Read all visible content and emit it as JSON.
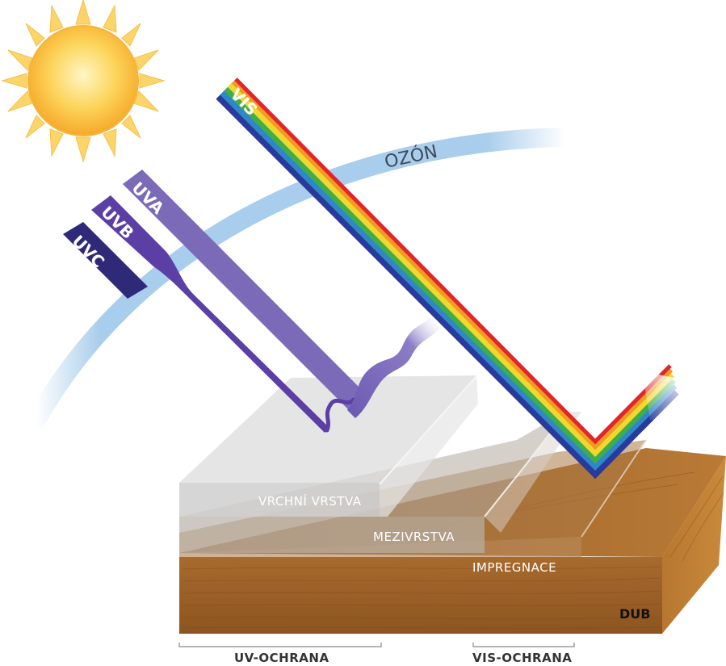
{
  "labels": {
    "ozone": "OZÓN",
    "vis": "VIS",
    "uva": "UVA",
    "uvb": "UVB",
    "uvc": "UVC",
    "top_layer": "VRCHNÍ VRSTVA",
    "middle_layer": "MEZIVRSTVA",
    "impregnation": "IMPREGNACE",
    "wood": "DUB"
  },
  "captions": {
    "uv_protection": "UV-OCHRANA",
    "vis_protection": "VIS-OCHRANA"
  },
  "colors": {
    "sun_core": "#f7b733",
    "sun_rays": "#fbd56a",
    "ozone_band": "#a9cdec",
    "uva": "#7a6ab8",
    "uvb": "#5b3fa5",
    "uvc": "#2f2a78",
    "wood": "#a8682a"
  }
}
